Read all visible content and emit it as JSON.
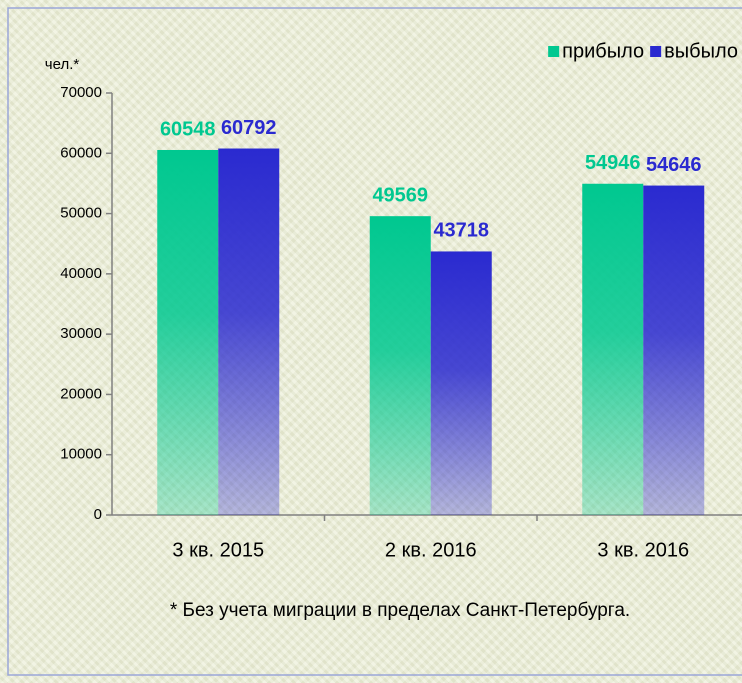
{
  "chart_data": {
    "type": "bar",
    "y_label": "чел.*",
    "categories": [
      "3 кв. 2015",
      "2 кв. 2016",
      "3 кв. 2016"
    ],
    "series": [
      {
        "name": "прибыло",
        "color": "#00c890",
        "values": [
          60548,
          49569,
          54946
        ]
      },
      {
        "name": "выбыло",
        "color": "#2a2ad0",
        "values": [
          60792,
          43718,
          54646
        ]
      }
    ],
    "ylim": [
      0,
      70000
    ],
    "yticks": [
      0,
      10000,
      20000,
      30000,
      40000,
      50000,
      60000,
      70000
    ],
    "grid": false,
    "legend": "top-right",
    "footnote": "* Без учета миграции в пределах Санкт-Петербурга."
  }
}
